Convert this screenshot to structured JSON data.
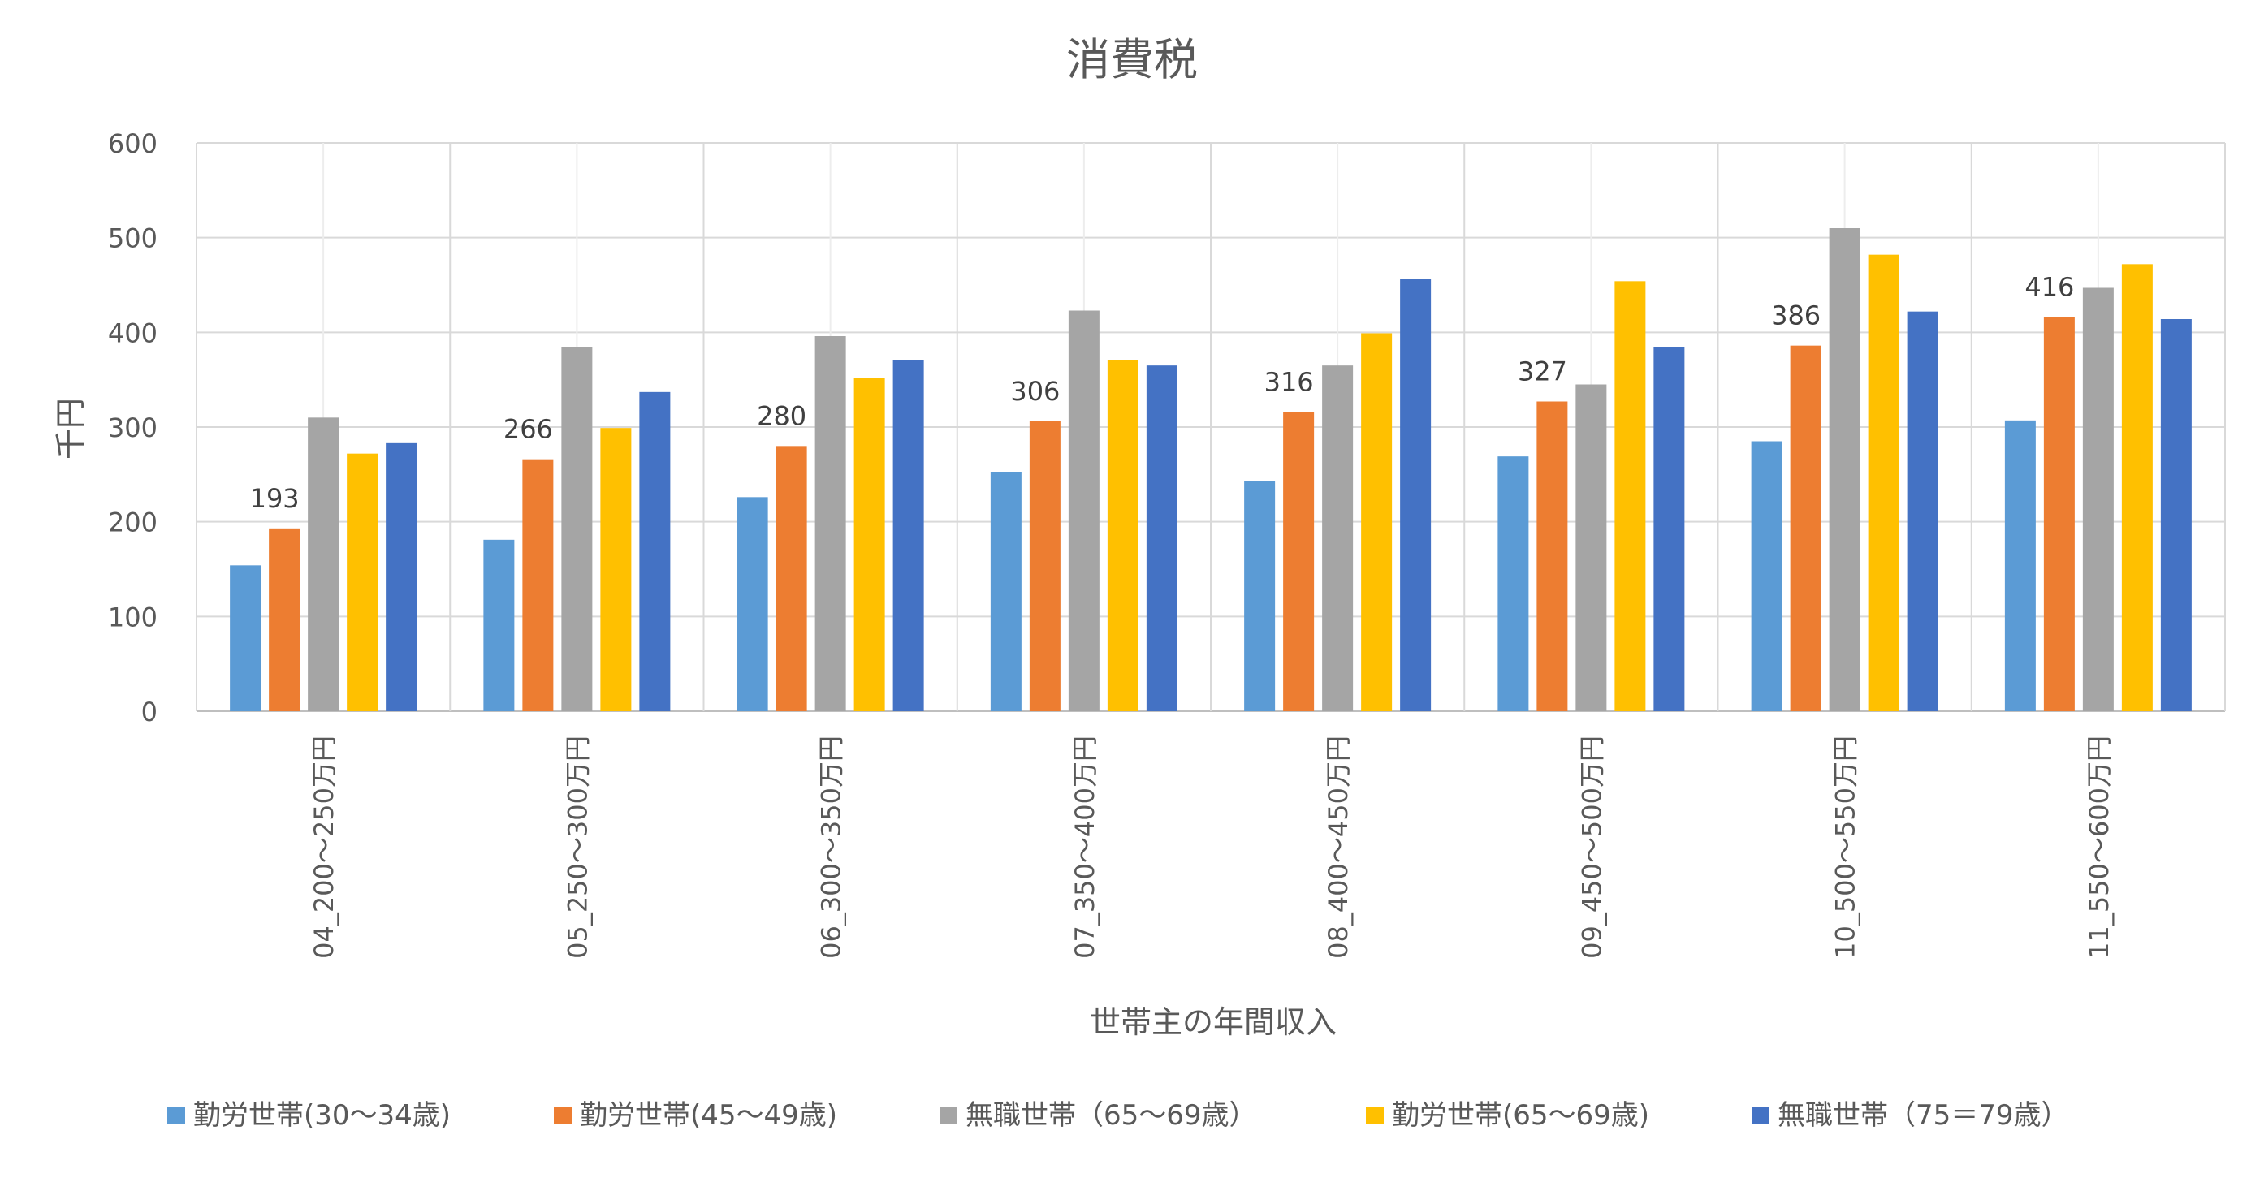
{
  "chart_data": {
    "type": "bar",
    "title": "消費税",
    "xlabel": "世帯主の年間収入",
    "ylabel": "千円",
    "ylim": [
      0,
      600
    ],
    "yticks": [
      0,
      100,
      200,
      300,
      400,
      500,
      600
    ],
    "grid": true,
    "legend_position": "bottom",
    "categories": [
      "04_200～250万円",
      "05_250～300万円",
      "06_300～350万円",
      "07_350～400万円",
      "08_400～450万円",
      "09_450～500万円",
      "10_500～550万円",
      "11_550～600万円"
    ],
    "series": [
      {
        "name": "勤労世帯(30～34歳)",
        "color": "#5B9BD5",
        "values": [
          154,
          181,
          226,
          252,
          243,
          269,
          285,
          307
        ]
      },
      {
        "name": "勤労世帯(45～49歳)",
        "color": "#ED7D31",
        "values": [
          193,
          266,
          280,
          306,
          316,
          327,
          386,
          416
        ],
        "labels": [
          "193",
          "266",
          "280",
          "306",
          "316",
          "327",
          "386",
          "416"
        ]
      },
      {
        "name": "無職世帯（65～69歳）",
        "color": "#A5A5A5",
        "values": [
          310,
          384,
          396,
          423,
          365,
          345,
          510,
          447
        ]
      },
      {
        "name": "勤労世帯(65～69歳)",
        "color": "#FFC000",
        "values": [
          272,
          299,
          352,
          371,
          399,
          454,
          482,
          472
        ]
      },
      {
        "name": "無職世帯（75＝79歳）",
        "color": "#4472C4",
        "values": [
          283,
          337,
          371,
          365,
          456,
          384,
          422,
          414
        ]
      }
    ]
  }
}
